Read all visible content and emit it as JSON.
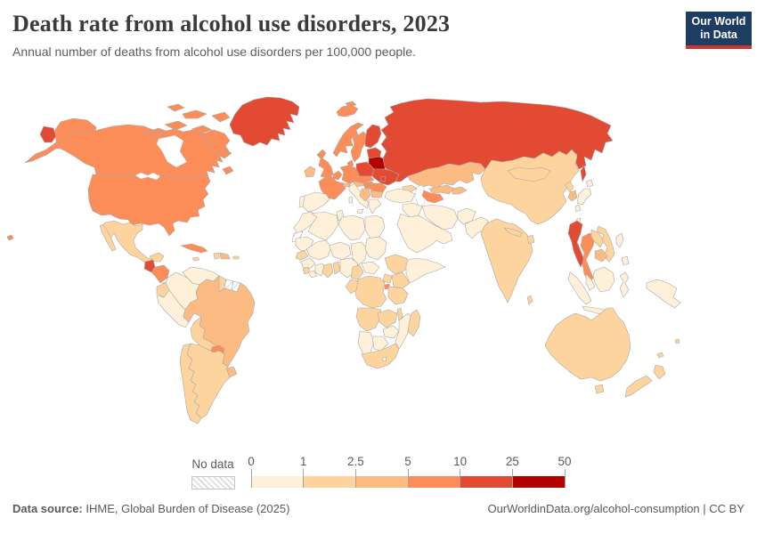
{
  "header": {
    "title": "Death rate from alcohol use disorders, 2023",
    "subtitle": "Annual number of deaths from alcohol use disorders per 100,000 people."
  },
  "logo": {
    "line1": "Our World",
    "line2": "in Data",
    "bg_color": "#1d3d63",
    "accent_color": "#cf352e"
  },
  "footer": {
    "source_label": "Data source:",
    "source_value": " IHME, Global Burden of Disease (2025)",
    "right_text": "OurWorldinData.org/alcohol-consumption | CC BY"
  },
  "chart_data": {
    "type": "heatmap",
    "subtype": "world-choropleth",
    "title": "Death rate from alcohol use disorders, 2023",
    "unit": "deaths per 100,000 people",
    "year": "2023",
    "no_data_label": "No data",
    "legend_tick_labels": [
      "0",
      "1",
      "2.5",
      "5",
      "10",
      "25",
      "50"
    ],
    "legend_buckets": [
      "0-1",
      "1-2.5",
      "2.5-5",
      "5-10",
      "10-25",
      "25-50"
    ],
    "palette": {
      "0-1": "#fef0d9",
      "1-2.5": "#fdd49e",
      "2.5-5": "#fdbb84",
      "5-10": "#fc8d59",
      "10-25": "#e34a33",
      "25-50": "#b30000",
      "no-data": "hatch"
    },
    "border_color": "#a9a9a9",
    "regions": {
      "canada": "5-10",
      "usa": "5-10",
      "greenland": "10-25",
      "mexico": "1-2.5",
      "guatemala": "10-25",
      "honduras-nicaragua": "5-10",
      "costa-rica-panama": "1-2.5",
      "cuba": "5-10",
      "jamaica": "1-2.5",
      "haiti": "1-2.5",
      "dominican-republic": "2.5-5",
      "puerto-rico": "1-2.5",
      "venezuela": "0-1",
      "colombia": "0-1",
      "guyana": "1-2.5",
      "suriname": "no-data",
      "french-guiana": "no-data",
      "ecuador": "1-2.5",
      "peru": "0-1",
      "brazil": "2.5-5",
      "bolivia": "1-2.5",
      "paraguay": "5-10",
      "uruguay": "2.5-5",
      "argentina": "1-2.5",
      "chile": "1-2.5",
      "iceland": "5-10",
      "ireland": "2.5-5",
      "united-kingdom": "5-10",
      "norway": "5-10",
      "sweden": "5-10",
      "finland": "10-25",
      "denmark": "5-10",
      "baltic-states": "10-25",
      "belarus": "25-50",
      "poland": "10-25",
      "germany": "5-10",
      "benelux": "5-10",
      "france": "5-10",
      "spain": "0-1",
      "portugal": "0-1",
      "italy": "0-1",
      "switzerland": "2.5-5",
      "austria": "2.5-5",
      "czechia-slovakia": "5-10",
      "hungary": "5-10",
      "ukraine": "10-25",
      "moldova": "10-25",
      "romania": "5-10",
      "serbia-balkans": "2.5-5",
      "bulgaria": "2.5-5",
      "greece": "0-1",
      "russia": "10-25",
      "kazakhstan": "2.5-5",
      "uzbekistan": "2.5-5",
      "turkmenistan": "5-10",
      "kyrgyzstan-tajikistan": "2.5-5",
      "caucasus": "1-2.5",
      "turkey": "0-1",
      "syria-iraq": "0-1",
      "iran": "0-1",
      "afghanistan": "0-1",
      "pakistan": "0-1",
      "saudi-arabia-peninsula": "0-1",
      "india": "1-2.5",
      "nepal": "1-2.5",
      "bangladesh": "1-2.5",
      "sri-lanka": "1-2.5",
      "china": "1-2.5",
      "mongolia": "1-2.5",
      "north-korea": "1-2.5",
      "south-korea": "2.5-5",
      "japan": "0-1",
      "taiwan": "0-1",
      "myanmar": "10-25",
      "thailand": "5-10",
      "laos": "1-2.5",
      "vietnam": "1-2.5",
      "cambodia": "2.5-5",
      "malaysia": "0-1",
      "indonesia": "0-1",
      "new-guinea": "0-1",
      "philippines": "0-1",
      "australia": "1-2.5",
      "new-zealand": "1-2.5",
      "fiji": "1-2.5",
      "new-caledonia": "1-2.5",
      "morocco": "0-1",
      "western-sahara": "no-data",
      "algeria": "0-1",
      "tunisia": "0-1",
      "libya": "0-1",
      "egypt": "0-1",
      "mauritania": "0-1",
      "mali": "0-1",
      "niger": "0-1",
      "chad": "0-1",
      "sudan": "0-1",
      "senegal": "1-2.5",
      "guinea": "0-1",
      "sierra-leone": "1-2.5",
      "liberia": "0-1",
      "ivory-coast": "0-1",
      "ghana": "1-2.5",
      "togo-benin": "1-2.5",
      "nigeria": "0-1",
      "cameroon": "1-2.5",
      "central-african-republic": "0-1",
      "ethiopia": "1-2.5",
      "somalia": "0-1",
      "kenya": "1-2.5",
      "uganda": "1-2.5",
      "rwanda-burundi": "5-10",
      "tanzania": "1-2.5",
      "dr-congo": "1-2.5",
      "congo-gabon": "1-2.5",
      "angola": "1-2.5",
      "zambia": "1-2.5",
      "malawi": "1-2.5",
      "mozambique": "0-1",
      "zimbabwe": "0-1",
      "namibia": "0-1",
      "botswana": "0-1",
      "south-africa": "1-2.5",
      "lesotho": "0-1",
      "madagascar": "1-2.5"
    }
  }
}
